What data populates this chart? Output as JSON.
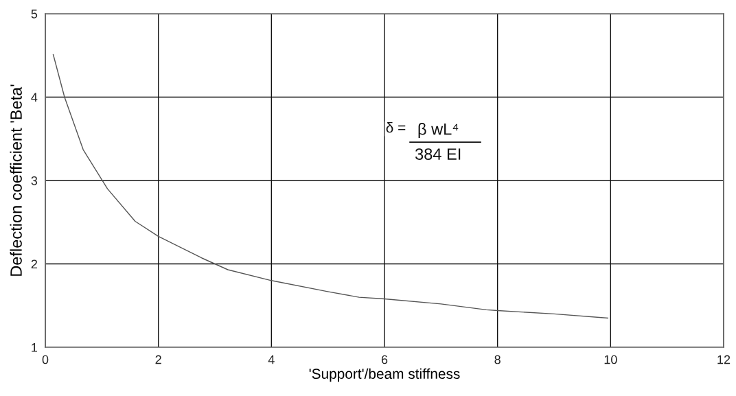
{
  "chart_data": {
    "type": "line",
    "xlabel": "'Support'/beam stiffness",
    "ylabel": "Deflection coefficient 'Beta'",
    "x": [
      0.14,
      0.34,
      0.67,
      1.1,
      1.59,
      2.0,
      2.77,
      3.23,
      4.0,
      4.98,
      5.55,
      6.0,
      7.0,
      7.8,
      8.0,
      9.0,
      9.95
    ],
    "series": [
      {
        "color": "#555555",
        "values": [
          4.51,
          4.0,
          3.37,
          2.9,
          2.51,
          2.33,
          2.07,
          1.93,
          1.8,
          1.67,
          1.6,
          1.58,
          1.52,
          1.45,
          1.44,
          1.4,
          1.35
        ]
      }
    ],
    "xlim": [
      0,
      12
    ],
    "ylim": [
      1,
      5
    ],
    "xticks": [
      0,
      2,
      4,
      6,
      8,
      10,
      12
    ],
    "yticks": [
      1,
      2,
      3,
      4,
      5
    ],
    "grid": true,
    "legend": false,
    "marker": "none",
    "line_style": "solid",
    "annotations": [
      "δ =",
      "β wL⁴",
      "384 EI"
    ]
  }
}
